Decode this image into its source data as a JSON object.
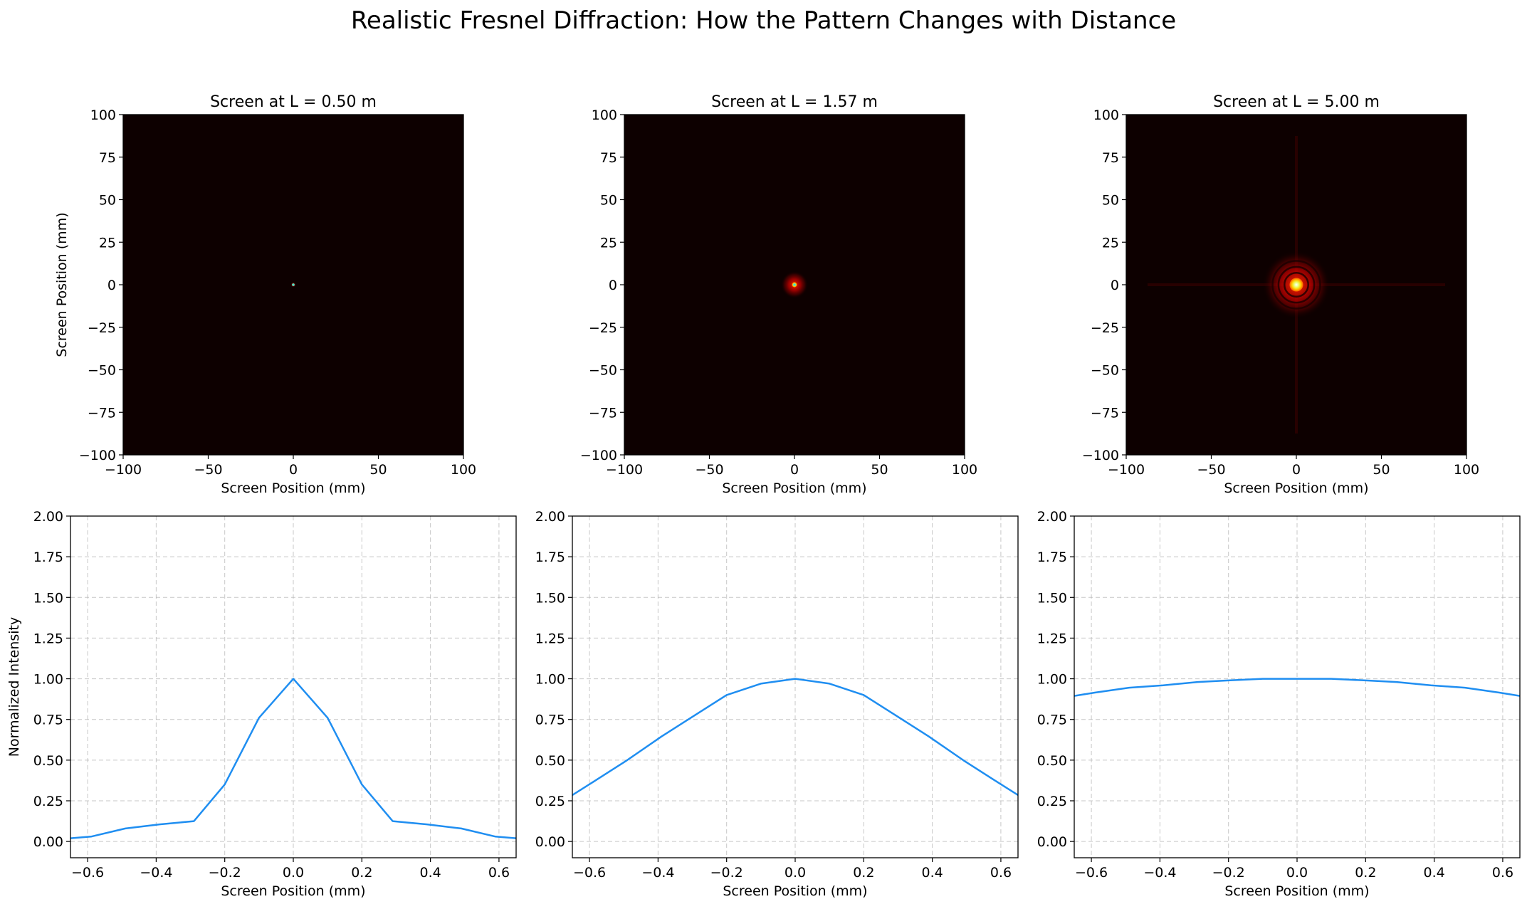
{
  "figure": {
    "title": "Realistic Fresnel Diffraction: How the Pattern Changes with Distance"
  },
  "chart_data": [
    {
      "type": "heatmap",
      "title": "Screen at L = 0.50 m",
      "xlabel": "Screen Position (mm)",
      "ylabel": "Screen Position (mm)",
      "xlim": [
        -100,
        100
      ],
      "ylim": [
        -100,
        100
      ],
      "xticks": [
        "−100",
        "−50",
        "0",
        "50",
        "100"
      ],
      "yticks": [
        "100",
        "75",
        "50",
        "25",
        "0",
        "−25",
        "−50",
        "−75",
        "−100"
      ],
      "colormap": "hot",
      "spot": {
        "center": [
          0,
          0
        ],
        "core_radius_mm": 0.8,
        "halo_radius_mm": 1.5
      }
    },
    {
      "type": "heatmap",
      "title": "Screen at L = 1.57 m",
      "xlabel": "Screen Position (mm)",
      "ylabel": "",
      "xlim": [
        -100,
        100
      ],
      "ylim": [
        -100,
        100
      ],
      "xticks": [
        "−100",
        "−50",
        "0",
        "50",
        "100"
      ],
      "yticks": [
        "100",
        "75",
        "50",
        "25",
        "0",
        "−25",
        "−50",
        "−75",
        "−100"
      ],
      "colormap": "hot",
      "spot": {
        "center": [
          0,
          0
        ],
        "core_radius_mm": 1.5,
        "halo_radius_mm": 8
      }
    },
    {
      "type": "heatmap",
      "title": "Screen at L = 5.00 m",
      "xlabel": "Screen Position (mm)",
      "ylabel": "",
      "xlim": [
        -100,
        100
      ],
      "ylim": [
        -100,
        100
      ],
      "xticks": [
        "−100",
        "−50",
        "0",
        "50",
        "100"
      ],
      "yticks": [
        "100",
        "75",
        "50",
        "25",
        "0",
        "−25",
        "−50",
        "−75",
        "−100"
      ],
      "colormap": "hot",
      "spot": {
        "center": [
          0,
          0
        ],
        "core_radius_mm": 4,
        "halo_radius_mm": 20
      }
    },
    {
      "type": "line",
      "title": "",
      "xlabel": "Screen Position (mm)",
      "ylabel": "Normalized Intensity",
      "xlim": [
        -0.65,
        0.65
      ],
      "ylim": [
        -0.1,
        2.0
      ],
      "grid": true,
      "xticks": [
        "−0.6",
        "−0.4",
        "−0.2",
        "0.0",
        "0.2",
        "0.4",
        "0.6"
      ],
      "yticks": [
        "2.00",
        "1.75",
        "1.50",
        "1.25",
        "1.00",
        "0.75",
        "0.50",
        "0.25",
        "0.00"
      ],
      "series": [
        {
          "name": "Intensity",
          "color": "#1f8ef1",
          "x": [
            -0.65,
            -0.59,
            -0.49,
            -0.39,
            -0.29,
            -0.2,
            -0.1,
            0.0,
            0.1,
            0.2,
            0.29,
            0.39,
            0.49,
            0.59,
            0.65
          ],
          "y": [
            0.02,
            0.03,
            0.08,
            0.105,
            0.125,
            0.35,
            0.76,
            1.0,
            0.76,
            0.35,
            0.125,
            0.105,
            0.08,
            0.03,
            0.02
          ]
        }
      ]
    },
    {
      "type": "line",
      "title": "",
      "xlabel": "Screen Position (mm)",
      "ylabel": "",
      "xlim": [
        -0.65,
        0.65
      ],
      "ylim": [
        -0.1,
        2.0
      ],
      "grid": true,
      "xticks": [
        "−0.6",
        "−0.4",
        "−0.2",
        "0.0",
        "0.2",
        "0.4",
        "0.6"
      ],
      "yticks": [
        "2.00",
        "1.75",
        "1.50",
        "1.25",
        "1.00",
        "0.75",
        "0.50",
        "0.25",
        "0.00"
      ],
      "series": [
        {
          "name": "Intensity",
          "color": "#1f8ef1",
          "x": [
            -0.65,
            -0.59,
            -0.49,
            -0.39,
            -0.29,
            -0.2,
            -0.1,
            0.0,
            0.1,
            0.2,
            0.29,
            0.39,
            0.49,
            0.59,
            0.65
          ],
          "y": [
            0.285,
            0.365,
            0.5,
            0.645,
            0.78,
            0.9,
            0.97,
            1.0,
            0.97,
            0.9,
            0.78,
            0.645,
            0.5,
            0.365,
            0.285
          ]
        }
      ]
    },
    {
      "type": "line",
      "title": "",
      "xlabel": "Screen Position (mm)",
      "ylabel": "",
      "xlim": [
        -0.65,
        0.65
      ],
      "ylim": [
        -0.1,
        2.0
      ],
      "grid": true,
      "xticks": [
        "−0.6",
        "−0.4",
        "−0.2",
        "0.0",
        "0.2",
        "0.4",
        "0.6"
      ],
      "yticks": [
        "2.00",
        "1.75",
        "1.50",
        "1.25",
        "1.00",
        "0.75",
        "0.50",
        "0.25",
        "0.00"
      ],
      "series": [
        {
          "name": "Intensity",
          "color": "#1f8ef1",
          "x": [
            -0.65,
            -0.59,
            -0.49,
            -0.39,
            -0.29,
            -0.2,
            -0.1,
            0.0,
            0.1,
            0.2,
            0.29,
            0.39,
            0.49,
            0.59,
            0.65
          ],
          "y": [
            0.895,
            0.915,
            0.945,
            0.96,
            0.98,
            0.99,
            1.0,
            1.0,
            1.0,
            0.99,
            0.98,
            0.96,
            0.945,
            0.915,
            0.895
          ]
        }
      ]
    }
  ]
}
